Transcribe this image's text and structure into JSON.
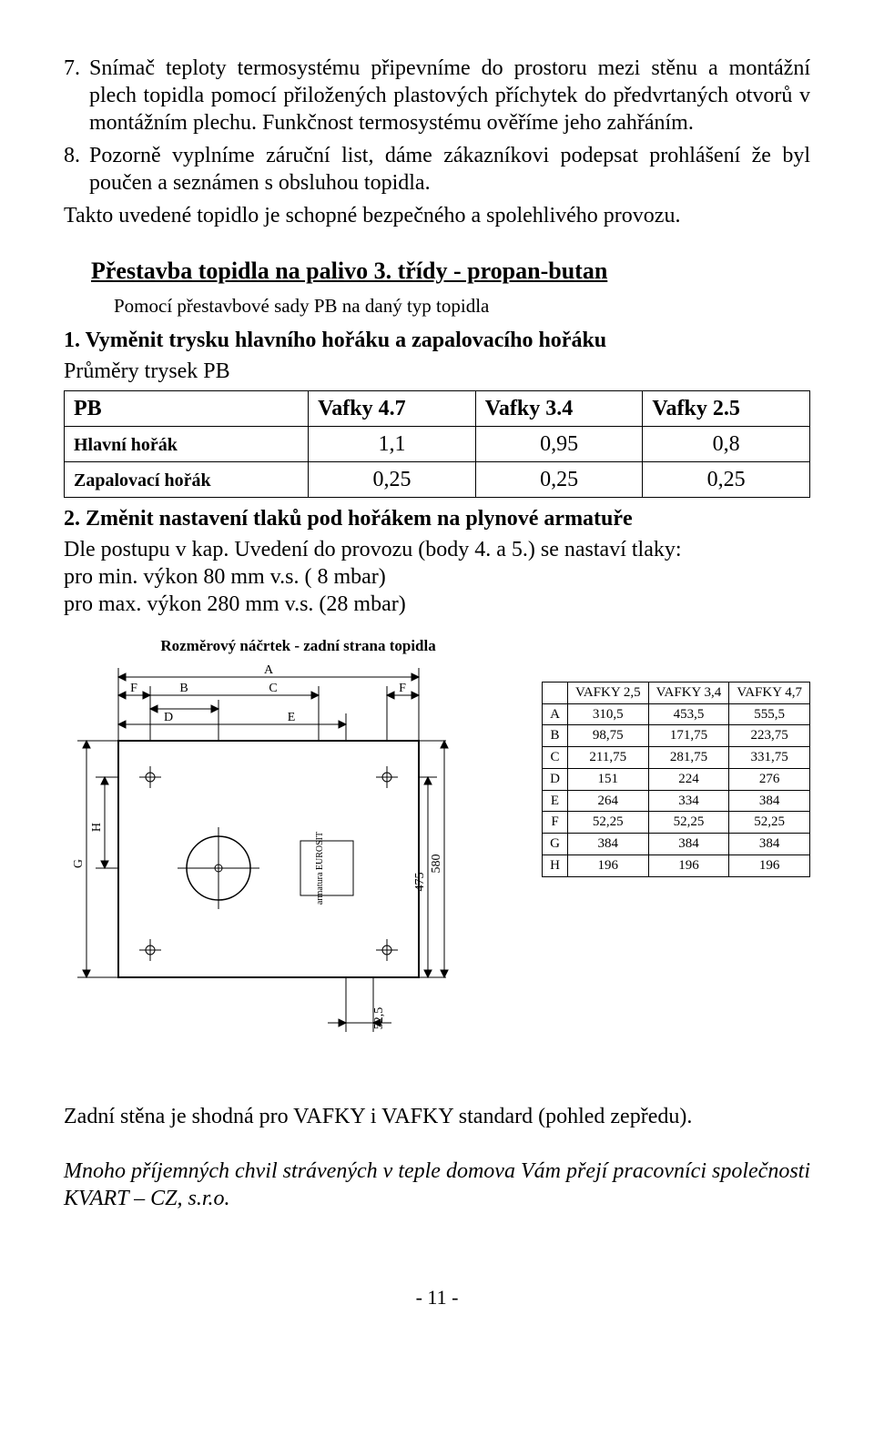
{
  "list7": {
    "num": "7.",
    "text": "Snímač teploty termosystému připevníme do prostoru mezi stěnu a montážní plech topidla pomocí přiložených plastových příchytek do předvrtaných otvorů v montážním plechu. Funkčnost termosystému ověříme jeho zahřáním."
  },
  "list8": {
    "num": "8.",
    "text": "Pozorně vyplníme záruční list, dáme zákazníkovi podepsat prohlášení že byl poučen a seznámen s obsluhou topidla."
  },
  "after_list": "Takto uvedené topidlo je schopné bezpečného a spolehlivého provozu.",
  "heading": "Přestavba topidla na palivo 3. třídy - propan-butan",
  "subnote": "Pomocí přestavbové sady PB na daný typ topidla",
  "step1": "1. Vyměnit trysku hlavního hořáku a zapalovacího hořáku",
  "table_caption": "Průměry trysek PB",
  "nozzle_table": {
    "headers": [
      "PB",
      "Vafky 4.7",
      "Vafky 3.4",
      "Vafky 2.5"
    ],
    "rows": [
      {
        "label": "Hlavní hořák",
        "v47": "1,1",
        "v34": "0,95",
        "v25": "0,8"
      },
      {
        "label": "Zapalovací hořák",
        "v47": "0,25",
        "v34": "0,25",
        "v25": "0,25"
      }
    ]
  },
  "step2": "2. Změnit nastavení tlaků pod hořákem na plynové armatuře",
  "pressure_lines": [
    "Dle postupu v kap. Uvedení do provozu (body 4. a 5.) se nastaví tlaky:",
    "pro min.  výkon   80 mm v.s. ( 8 mbar)",
    "pro max. výkon 280 mm v.s. (28 mbar)"
  ],
  "diagram": {
    "title": "Rozměrový náčrtek - zadní strana topidla",
    "top_labels": [
      "A",
      "F",
      "B",
      "D",
      "C",
      "E",
      "F"
    ],
    "left_labels": [
      "G",
      "H"
    ],
    "right_dims": [
      "475",
      "580"
    ],
    "bottom_dim": "52,5",
    "armature_label": "armatura EUROSIT"
  },
  "dims_table": {
    "headers": [
      "",
      "VAFKY 2,5",
      "VAFKY 3,4",
      "VAFKY 4,7"
    ],
    "rows": [
      [
        "A",
        "310,5",
        "453,5",
        "555,5"
      ],
      [
        "B",
        "98,75",
        "171,75",
        "223,75"
      ],
      [
        "C",
        "211,75",
        "281,75",
        "331,75"
      ],
      [
        "D",
        "151",
        "224",
        "276"
      ],
      [
        "E",
        "264",
        "334",
        "384"
      ],
      [
        "F",
        "52,25",
        "52,25",
        "52,25"
      ],
      [
        "G",
        "384",
        "384",
        "384"
      ],
      [
        "H",
        "196",
        "196",
        "196"
      ]
    ]
  },
  "footer1": "Zadní stěna je shodná pro VAFKY i VAFKY standard (pohled zepředu).",
  "footer2": "Mnoho příjemných chvil strávených v teple domova Vám přejí pracovníci společnosti  KVART – CZ, s.r.o.",
  "page_num": "- 11 -"
}
